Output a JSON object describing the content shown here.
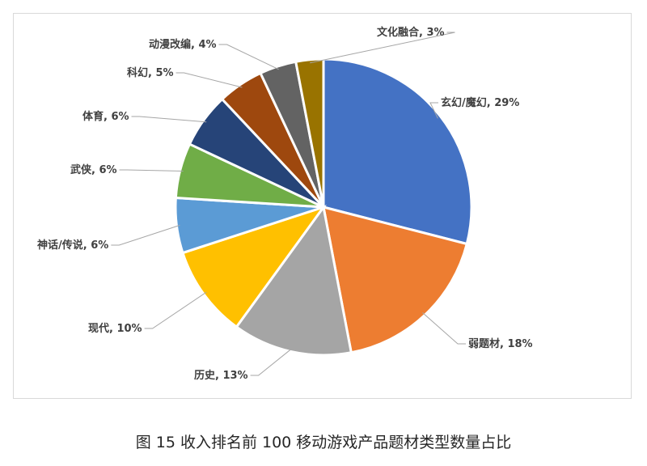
{
  "caption": "图 15 收入排名前 100 移动游戏产品题材类型数量占比",
  "chart_data": {
    "type": "pie",
    "title": "",
    "unit": "%",
    "slices": [
      {
        "label": "玄幻/魔幻",
        "value": 29,
        "color": "#4472C4",
        "display": "玄幻/魔幻, 29%"
      },
      {
        "label": "弱题材",
        "value": 18,
        "color": "#ED7D31",
        "display": "弱题材, 18%"
      },
      {
        "label": "历史",
        "value": 13,
        "color": "#A5A5A5",
        "display": "历史, 13%"
      },
      {
        "label": "现代",
        "value": 10,
        "color": "#FFC000",
        "display": "现代, 10%"
      },
      {
        "label": "神话/传说",
        "value": 6,
        "color": "#5B9BD5",
        "display": "神话/传说, 6%"
      },
      {
        "label": "武侠",
        "value": 6,
        "color": "#70AD47",
        "display": "武侠, 6%"
      },
      {
        "label": "体育",
        "value": 6,
        "color": "#264478",
        "display": "体育, 6%"
      },
      {
        "label": "科幻",
        "value": 5,
        "color": "#9E480E",
        "display": "科幻, 5%"
      },
      {
        "label": "动漫改编",
        "value": 4,
        "color": "#636363",
        "display": "动漫改编, 4%"
      },
      {
        "label": "文化融合",
        "value": 3,
        "color": "#997300",
        "display": "文化融合, 3%"
      }
    ]
  }
}
